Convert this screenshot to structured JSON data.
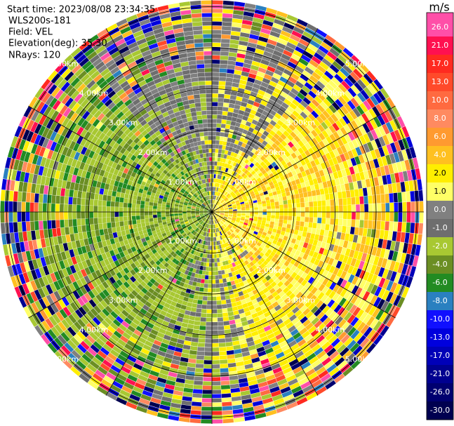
{
  "header": {
    "start_time": "Start time: 2023/08/08 23:34:35",
    "instrument": "WLS200s-181",
    "field": "Field: VEL",
    "elevation": "Elevation(deg): 35.30",
    "nrays": "NRays: 120"
  },
  "rings": {
    "labels": [
      "1.00km",
      "2.00km",
      "3.00km",
      "4.00km",
      "5.00km"
    ]
  },
  "colorbar": {
    "unit": "m/s",
    "labels": [
      "26.0",
      "21.0",
      "17.0",
      "13.0",
      "10.0",
      "8.0",
      "6.0",
      "4.0",
      "2.0",
      "1.0",
      "0.0",
      "-1.0",
      "-2.0",
      "-4.0",
      "-6.0",
      "-8.0",
      "-10.0",
      "-13.0",
      "-17.0",
      "-21.0",
      "-26.0",
      "-30.0"
    ],
    "colors": [
      "#ff4fa8",
      "#ff1050",
      "#ff2a20",
      "#ff4a2a",
      "#ff6a40",
      "#ff8a60",
      "#ff9a30",
      "#ffc020",
      "#ffee00",
      "#ffff66",
      "#808080",
      "#6e6e6e",
      "#a8c832",
      "#6b8e23",
      "#228b22",
      "#2a80c0",
      "#1010ff",
      "#0000dd",
      "#0000b8",
      "#000090",
      "#000070",
      "#000050"
    ]
  }
}
